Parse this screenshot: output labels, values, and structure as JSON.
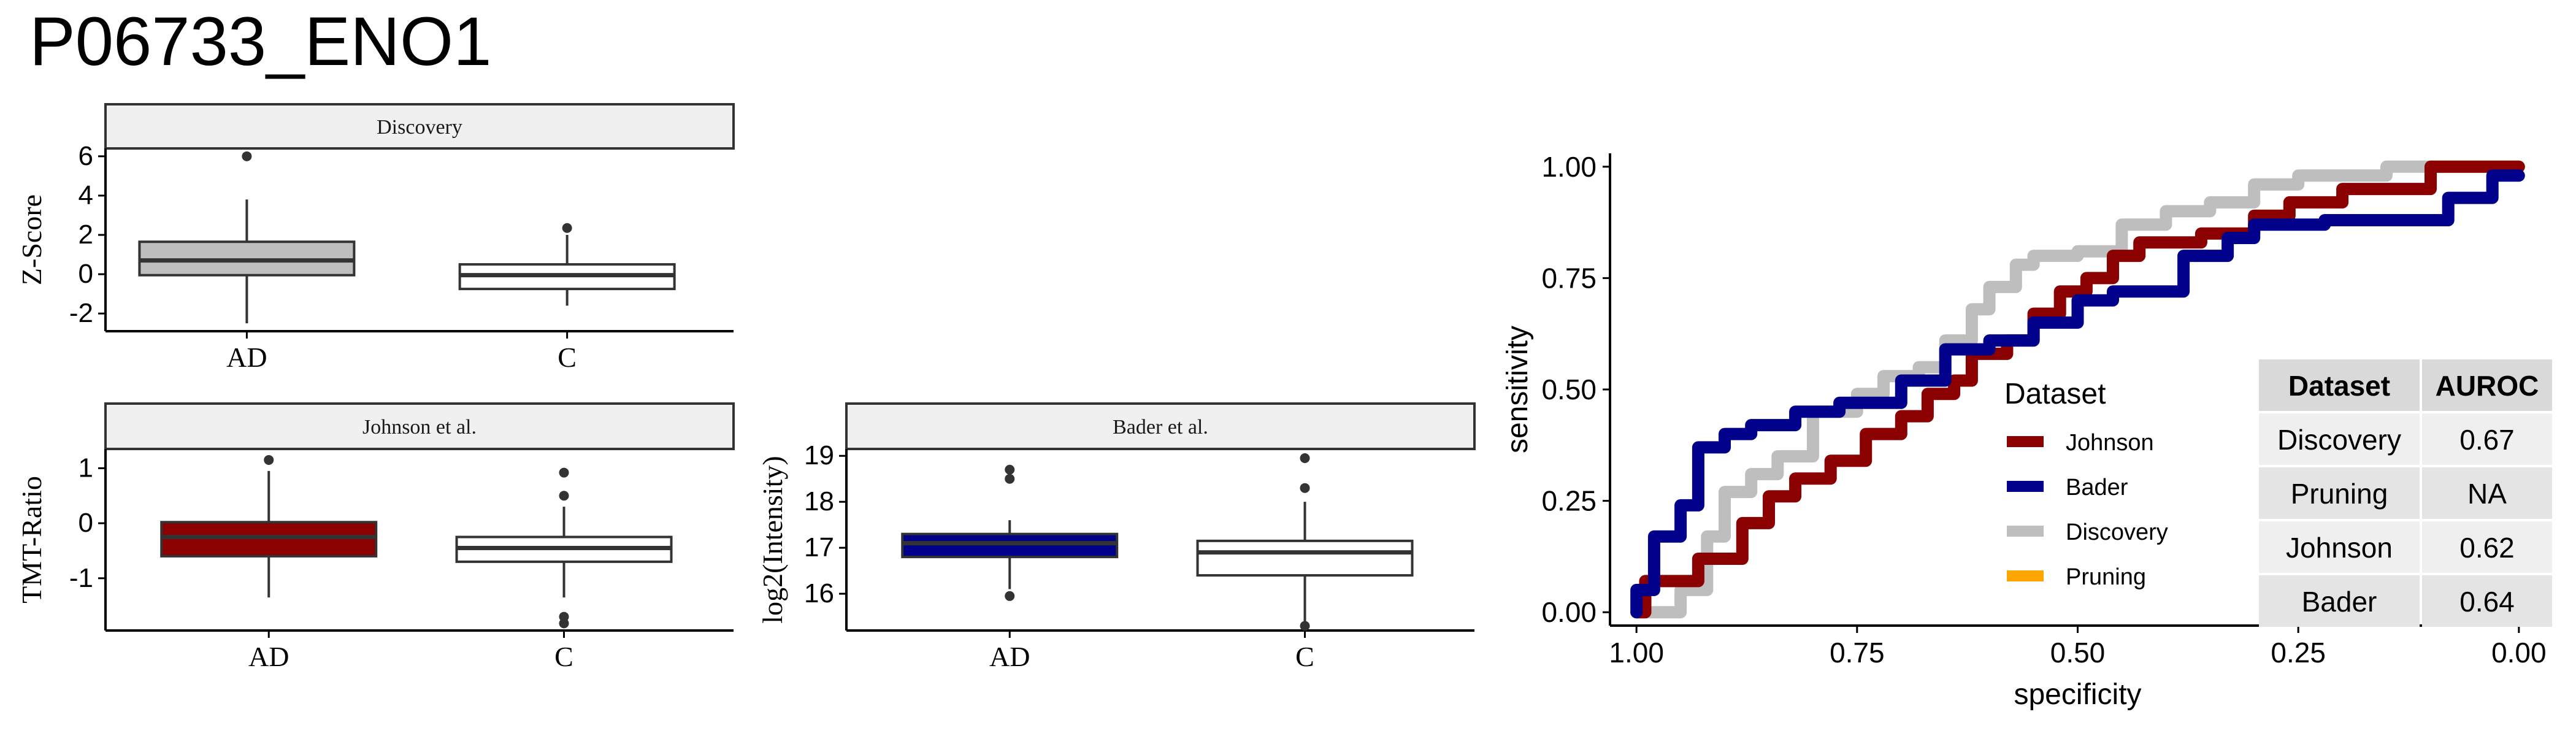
{
  "page": {
    "title": "P06733_ENO1"
  },
  "chart_data": [
    {
      "type": "box",
      "title": "Discovery",
      "ylabel": "Z-Score",
      "categories": [
        "AD",
        "C"
      ],
      "fill_colors": [
        "#bebebe",
        "#ffffff"
      ],
      "ylim": [
        -2.9,
        6.4
      ],
      "yticks": [
        -2,
        0,
        2,
        4,
        6
      ],
      "boxes": [
        {
          "q1": -0.05,
          "median": 0.7,
          "q3": 1.65,
          "whisker_low": -2.5,
          "whisker_high": 3.8,
          "outliers": [
            6.0
          ]
        },
        {
          "q1": -0.75,
          "median": -0.05,
          "q3": 0.5,
          "whisker_low": -1.6,
          "whisker_high": 2.0,
          "outliers": [
            2.35
          ]
        }
      ]
    },
    {
      "type": "box",
      "title": "Johnson et al.",
      "ylabel": "TMT-Ratio",
      "categories": [
        "AD",
        "C"
      ],
      "fill_colors": [
        "#8b0000",
        "#ffffff"
      ],
      "ylim": [
        -1.95,
        1.35
      ],
      "yticks": [
        -1,
        0,
        1
      ],
      "boxes": [
        {
          "q1": -0.6,
          "median": -0.25,
          "q3": 0.02,
          "whisker_low": -1.35,
          "whisker_high": 0.95,
          "outliers": [
            1.15
          ]
        },
        {
          "q1": -0.7,
          "median": -0.45,
          "q3": -0.25,
          "whisker_low": -1.35,
          "whisker_high": 0.3,
          "outliers": [
            0.92,
            0.5,
            -1.7,
            -1.82
          ]
        }
      ]
    },
    {
      "type": "box",
      "title": "Bader et al.",
      "ylabel": "log2(Intensity)",
      "categories": [
        "AD",
        "C"
      ],
      "fill_colors": [
        "#00008b",
        "#ffffff"
      ],
      "ylim": [
        15.2,
        19.15
      ],
      "yticks": [
        16,
        17,
        18,
        19
      ],
      "boxes": [
        {
          "q1": 16.8,
          "median": 17.1,
          "q3": 17.3,
          "whisker_low": 16.1,
          "whisker_high": 17.6,
          "outliers": [
            18.7,
            18.5,
            15.95
          ]
        },
        {
          "q1": 16.4,
          "median": 16.9,
          "q3": 17.15,
          "whisker_low": 15.4,
          "whisker_high": 18.0,
          "outliers": [
            18.95,
            18.3,
            15.3
          ]
        }
      ]
    },
    {
      "type": "line",
      "xlabel": "specificity",
      "ylabel": "sensitivity",
      "xlim": [
        1.03,
        -0.03
      ],
      "ylim": [
        -0.03,
        1.03
      ],
      "xticks": [
        1.0,
        0.75,
        0.5,
        0.25,
        0.0
      ],
      "xtick_labels": [
        "1.00",
        "0.75",
        "0.50",
        "0.25",
        "0.00"
      ],
      "yticks": [
        0.0,
        0.25,
        0.5,
        0.75,
        1.0
      ],
      "ytick_labels": [
        "0.00",
        "0.25",
        "0.50",
        "0.75",
        "1.00"
      ],
      "legend": {
        "title": "Dataset",
        "placement": "bottom-center",
        "entries": [
          {
            "name": "Johnson",
            "color": "#8b0000"
          },
          {
            "name": "Bader",
            "color": "#00008b"
          },
          {
            "name": "Discovery",
            "color": "#bebebe"
          },
          {
            "name": "Pruning",
            "color": "#ffa500"
          }
        ]
      },
      "series": [
        {
          "name": "Discovery",
          "color": "#bebebe",
          "x": [
            1.0,
            0.95,
            0.95,
            0.92,
            0.92,
            0.9,
            0.9,
            0.87,
            0.87,
            0.84,
            0.84,
            0.8,
            0.8,
            0.75,
            0.75,
            0.72,
            0.72,
            0.68,
            0.68,
            0.65,
            0.65,
            0.62,
            0.62,
            0.6,
            0.6,
            0.57,
            0.57,
            0.55,
            0.55,
            0.5,
            0.5,
            0.45,
            0.45,
            0.4,
            0.4,
            0.35,
            0.35,
            0.3,
            0.3,
            0.25,
            0.25,
            0.15,
            0.15,
            0.0
          ],
          "y": [
            0.0,
            0.0,
            0.05,
            0.05,
            0.17,
            0.17,
            0.27,
            0.27,
            0.31,
            0.31,
            0.35,
            0.35,
            0.45,
            0.45,
            0.49,
            0.49,
            0.53,
            0.53,
            0.55,
            0.55,
            0.61,
            0.61,
            0.68,
            0.68,
            0.73,
            0.73,
            0.78,
            0.78,
            0.8,
            0.8,
            0.81,
            0.81,
            0.87,
            0.87,
            0.9,
            0.9,
            0.92,
            0.92,
            0.96,
            0.96,
            0.98,
            0.98,
            1.0,
            1.0
          ]
        },
        {
          "name": "Johnson",
          "color": "#8b0000",
          "x": [
            1.0,
            0.99,
            0.99,
            0.93,
            0.93,
            0.88,
            0.88,
            0.85,
            0.85,
            0.82,
            0.82,
            0.78,
            0.78,
            0.74,
            0.74,
            0.7,
            0.7,
            0.67,
            0.67,
            0.64,
            0.64,
            0.62,
            0.62,
            0.58,
            0.58,
            0.55,
            0.55,
            0.52,
            0.52,
            0.49,
            0.49,
            0.46,
            0.46,
            0.43,
            0.43,
            0.36,
            0.36,
            0.3,
            0.3,
            0.26,
            0.26,
            0.2,
            0.2,
            0.1,
            0.1,
            0.0
          ],
          "y": [
            0.0,
            0.0,
            0.07,
            0.07,
            0.12,
            0.12,
            0.2,
            0.2,
            0.26,
            0.26,
            0.3,
            0.3,
            0.34,
            0.34,
            0.4,
            0.4,
            0.44,
            0.44,
            0.49,
            0.49,
            0.52,
            0.52,
            0.58,
            0.58,
            0.61,
            0.61,
            0.67,
            0.67,
            0.72,
            0.72,
            0.75,
            0.75,
            0.8,
            0.8,
            0.83,
            0.83,
            0.85,
            0.85,
            0.89,
            0.89,
            0.92,
            0.92,
            0.95,
            0.95,
            1.0,
            1.0
          ]
        },
        {
          "name": "Bader",
          "color": "#00008b",
          "x": [
            1.0,
            1.0,
            0.98,
            0.98,
            0.95,
            0.95,
            0.93,
            0.93,
            0.9,
            0.9,
            0.87,
            0.87,
            0.82,
            0.82,
            0.77,
            0.77,
            0.7,
            0.7,
            0.65,
            0.65,
            0.6,
            0.6,
            0.55,
            0.55,
            0.5,
            0.5,
            0.46,
            0.46,
            0.38,
            0.38,
            0.33,
            0.33,
            0.3,
            0.3,
            0.22,
            0.22,
            0.08,
            0.08,
            0.03,
            0.03,
            0.0
          ],
          "y": [
            0.0,
            0.05,
            0.05,
            0.17,
            0.17,
            0.24,
            0.24,
            0.37,
            0.37,
            0.4,
            0.4,
            0.42,
            0.42,
            0.45,
            0.45,
            0.47,
            0.47,
            0.52,
            0.52,
            0.59,
            0.59,
            0.61,
            0.61,
            0.65,
            0.65,
            0.7,
            0.7,
            0.72,
            0.72,
            0.8,
            0.8,
            0.84,
            0.84,
            0.87,
            0.87,
            0.88,
            0.88,
            0.93,
            0.93,
            0.98,
            0.98
          ]
        }
      ],
      "table": {
        "headers": [
          "Dataset",
          "AUROC"
        ],
        "rows": [
          [
            "Discovery",
            "0.67"
          ],
          [
            "Pruning",
            "NA"
          ],
          [
            "Johnson",
            "0.62"
          ],
          [
            "Bader",
            "0.64"
          ]
        ]
      }
    }
  ]
}
